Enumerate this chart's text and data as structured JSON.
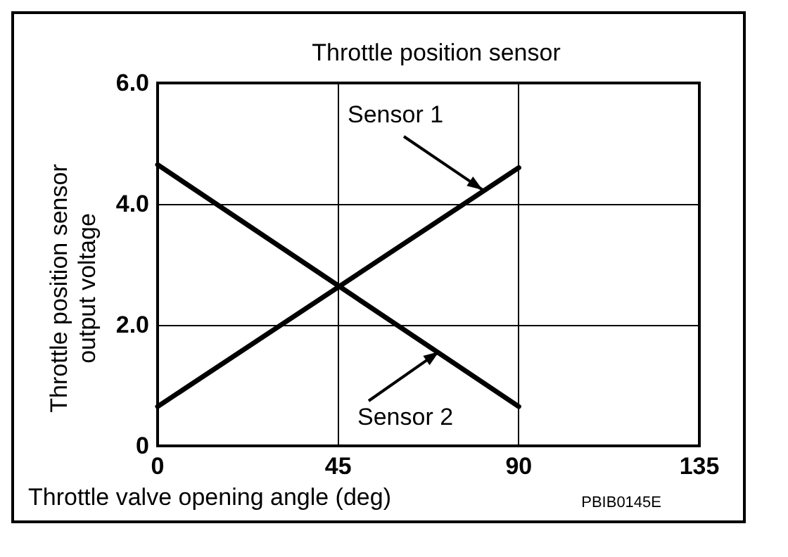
{
  "chart_data": {
    "type": "line",
    "title": "Throttle position sensor",
    "xlabel": "Throttle valve opening angle (deg)",
    "ylabel": "Throttle position sensor\noutput voltage",
    "annotations": [
      "PBIB0145E"
    ],
    "x": [
      0,
      90
    ],
    "series": [
      {
        "name": "Sensor 1",
        "color": "#000000",
        "values": [
          0.65,
          4.6
        ]
      },
      {
        "name": "Sensor 2",
        "color": "#000000",
        "values": [
          4.65,
          0.65
        ]
      }
    ],
    "xlim": [
      0,
      135
    ],
    "xticks": [
      0,
      45,
      90,
      135
    ],
    "ylim": [
      0,
      6
    ],
    "yticks": [
      0,
      {
        "value": 2,
        "label": "2.0"
      },
      {
        "value": 4,
        "label": "4.0"
      },
      {
        "value": 6,
        "label": "6.0"
      }
    ],
    "grid": true,
    "marker": "none",
    "line_style": "solid"
  }
}
